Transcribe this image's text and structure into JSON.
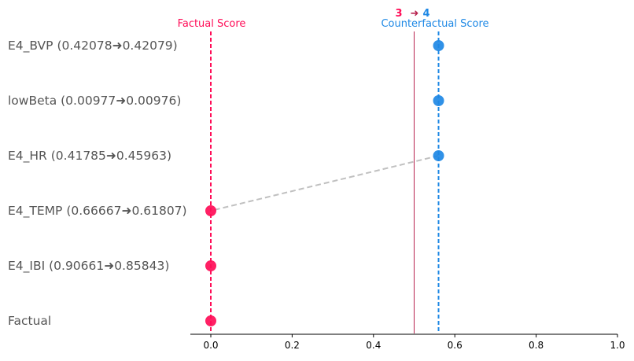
{
  "chart_data": {
    "type": "scatter",
    "header": {
      "factual_label": "Factual Score",
      "counterfactual_label": "Counterfactual Score",
      "class_from": "3",
      "arrow": "➜",
      "class_to": "4"
    },
    "rows": [
      {
        "label": "E4_BVP (0.42078➜0.42079)",
        "x": 0.56
      },
      {
        "label": "lowBeta (0.00977➜0.00976)",
        "x": 0.56
      },
      {
        "label": "E4_HR (0.41785➜0.45963)",
        "x": 0.56
      },
      {
        "label": "E4_TEMP (0.66667➜0.61807)",
        "x": 0.0
      },
      {
        "label": "E4_IBI (0.90661➜0.85843)",
        "x": 0.0
      },
      {
        "label": "Factual",
        "x": 0.0
      }
    ],
    "factual_score": 0.0,
    "counterfactual_score": 0.56,
    "threshold": 0.5,
    "xlim": [
      -0.05,
      1.0
    ],
    "xticks": [
      "0.0",
      "0.2",
      "0.4",
      "0.6",
      "0.8",
      "1.0"
    ],
    "grid": false,
    "colors": {
      "factual": "#ff0d57",
      "counterfactual": "#1e88e5",
      "threshold": "#b8234f",
      "connector": "#c0c0c0",
      "label_text": "#555555"
    }
  }
}
